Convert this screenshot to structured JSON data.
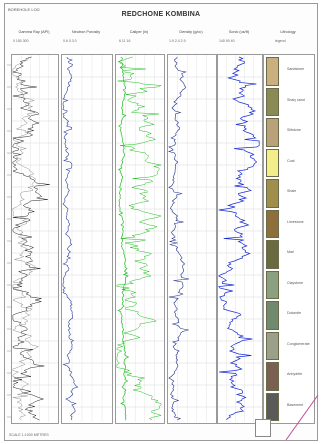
{
  "sheet": {
    "top_left": "BOREHOLE LOG",
    "title": "REDCHONE KOMBINA",
    "footer": "SCALE 1:1000 METRES"
  },
  "tracks": [
    {
      "header": "Gamma Ray (API)",
      "scale": "0   150   300",
      "color": "#222222"
    },
    {
      "header": "Neutron Porosity",
      "scale": "0.6   0.3   0",
      "color": "#2a3f9a"
    },
    {
      "header": "Caliper (in)",
      "scale": "6   11   16",
      "color": "#1fbf1f"
    },
    {
      "header": "Density (g/cc)",
      "scale": "1.9   2.4   2.9",
      "color": "#1d2f8a"
    },
    {
      "header": "Sonic (us/ft)",
      "scale": "140   90   40",
      "color": "#1a2fd6"
    }
  ],
  "lithology": {
    "header": "Lithology",
    "subheader": "legend",
    "units": [
      {
        "label": "Sandstone",
        "color": "#c9b07e"
      },
      {
        "label": "Shaly sand",
        "color": "#8a8a55"
      },
      {
        "label": "Siltstone",
        "color": "#b9a27a"
      },
      {
        "label": "Coal",
        "color": "#f3ee8a"
      },
      {
        "label": "Shale",
        "color": "#a08f4a"
      },
      {
        "label": "Limestone",
        "color": "#8e6f3c"
      },
      {
        "label": "Marl",
        "color": "#6a6a40"
      },
      {
        "label": "Claystone",
        "color": "#8aa080"
      },
      {
        "label": "Dolomite",
        "color": "#6f8a6f"
      },
      {
        "label": "Conglomerate",
        "color": "#9aa08a"
      },
      {
        "label": "Anhydrite",
        "color": "#7a6050"
      },
      {
        "label": "Basement",
        "color": "#5a5a5a"
      }
    ]
  }
}
